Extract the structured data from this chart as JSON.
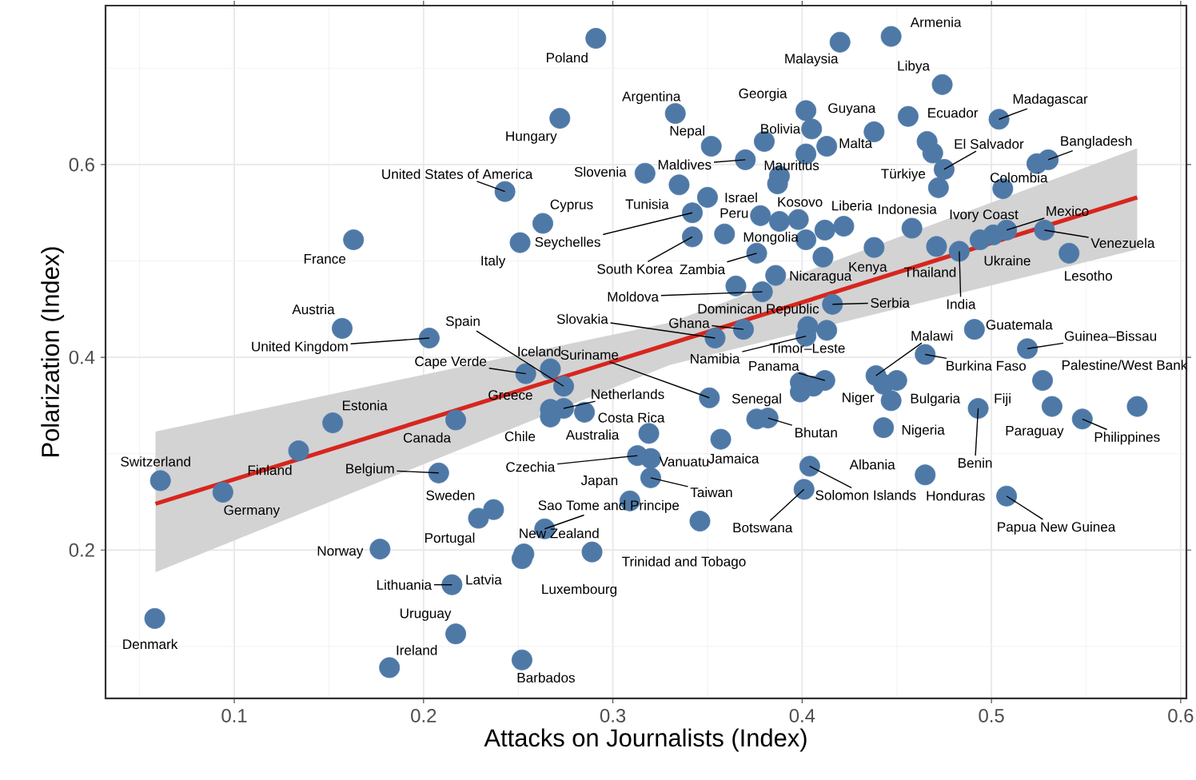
{
  "chart_data": {
    "type": "scatter",
    "xlabel": "Attacks on Journalists (Index)",
    "ylabel": "Polarization (Index)",
    "xlim": [
      0.032,
      0.603
    ],
    "ylim": [
      0.046,
      0.765
    ],
    "xticks": [
      0.1,
      0.2,
      0.3,
      0.4,
      0.5,
      0.6
    ],
    "yticks": [
      0.2,
      0.4,
      0.6
    ],
    "grid": true,
    "series": [
      {
        "marker": "circle",
        "color": "#4e79a7",
        "x": [
          0.058,
          0.061,
          0.094,
          0.134,
          0.152,
          0.217,
          0.208,
          0.237,
          0.229,
          0.177,
          0.215,
          0.217,
          0.182,
          0.252,
          0.252,
          0.253,
          0.289,
          0.264,
          0.254,
          0.267,
          0.274,
          0.274,
          0.267,
          0.267,
          0.285,
          0.313,
          0.32,
          0.32,
          0.309,
          0.319,
          0.346,
          0.401,
          0.404,
          0.443,
          0.447,
          0.443,
          0.45,
          0.493,
          0.465,
          0.508,
          0.527,
          0.577,
          0.532,
          0.548,
          0.519,
          0.491,
          0.465,
          0.439,
          0.413,
          0.402,
          0.412,
          0.376,
          0.351,
          0.357,
          0.382,
          0.354,
          0.369,
          0.365,
          0.379,
          0.386,
          0.416,
          0.376,
          0.342,
          0.342,
          0.335,
          0.359,
          0.35,
          0.398,
          0.402,
          0.422,
          0.458,
          0.438,
          0.471,
          0.483,
          0.494,
          0.501,
          0.508,
          0.528,
          0.541,
          0.506,
          0.53,
          0.504,
          0.466,
          0.475,
          0.472,
          0.474,
          0.447,
          0.42,
          0.438,
          0.402,
          0.38,
          0.413,
          0.402,
          0.352,
          0.333,
          0.37,
          0.317,
          0.291,
          0.272,
          0.243,
          0.263,
          0.251,
          0.163,
          0.157,
          0.203,
          0.399,
          0.399,
          0.406,
          0.403,
          0.405,
          0.388,
          0.387,
          0.378,
          0.388,
          0.412,
          0.411,
          0.469,
          0.456,
          0.524
        ],
        "values": [
          0.129,
          0.272,
          0.26,
          0.303,
          0.332,
          0.335,
          0.28,
          0.242,
          0.233,
          0.201,
          0.164,
          0.113,
          0.078,
          0.086,
          0.191,
          0.196,
          0.198,
          0.222,
          0.383,
          0.388,
          0.37,
          0.347,
          0.346,
          0.338,
          0.343,
          0.298,
          0.295,
          0.275,
          0.251,
          0.321,
          0.23,
          0.263,
          0.287,
          0.327,
          0.355,
          0.372,
          0.376,
          0.347,
          0.278,
          0.256,
          0.376,
          0.349,
          0.349,
          0.336,
          0.409,
          0.429,
          0.403,
          0.381,
          0.428,
          0.422,
          0.376,
          0.336,
          0.358,
          0.315,
          0.337,
          0.42,
          0.429,
          0.474,
          0.468,
          0.485,
          0.455,
          0.508,
          0.525,
          0.55,
          0.579,
          0.528,
          0.566,
          0.543,
          0.522,
          0.536,
          0.534,
          0.514,
          0.515,
          0.51,
          0.522,
          0.527,
          0.532,
          0.532,
          0.508,
          0.575,
          0.605,
          0.647,
          0.624,
          0.595,
          0.576,
          0.683,
          0.733,
          0.727,
          0.634,
          0.656,
          0.624,
          0.619,
          0.611,
          0.619,
          0.653,
          0.605,
          0.591,
          0.731,
          0.648,
          0.572,
          0.539,
          0.519,
          0.522,
          0.43,
          0.42,
          0.364,
          0.374,
          0.37,
          0.432,
          0.637,
          0.588,
          0.58,
          0.547,
          0.541,
          0.532,
          0.504,
          0.612,
          0.65,
          0.601
        ]
      },
      {
        "type": "line",
        "color": "#d7261e",
        "x": [
          0.0584,
          0.33,
          0.577
        ],
        "values": [
          0.248,
          0.414,
          0.566
        ],
        "lower": [
          0.177,
          0.392,
          0.512
        ],
        "upper": [
          0.323,
          0.436,
          0.617
        ]
      }
    ],
    "annotations": [
      {
        "text": "Denmark",
        "x": 0.058,
        "y": 0.129
      },
      {
        "text": "Switzerland",
        "x": 0.061,
        "y": 0.272
      },
      {
        "text": "Germany",
        "x": 0.094,
        "y": 0.26
      },
      {
        "text": "Finland",
        "x": 0.134,
        "y": 0.303
      },
      {
        "text": "Estonia",
        "x": 0.152,
        "y": 0.332
      },
      {
        "text": "Canada",
        "x": 0.217,
        "y": 0.335
      },
      {
        "text": "Belgium",
        "x": 0.208,
        "y": 0.28
      },
      {
        "text": "Sweden",
        "x": 0.237,
        "y": 0.242
      },
      {
        "text": "Portugal",
        "x": 0.229,
        "y": 0.233
      },
      {
        "text": "Norway",
        "x": 0.177,
        "y": 0.201
      },
      {
        "text": "Lithuania",
        "x": 0.215,
        "y": 0.164
      },
      {
        "text": "Uruguay",
        "x": 0.217,
        "y": 0.113
      },
      {
        "text": "Ireland",
        "x": 0.182,
        "y": 0.078
      },
      {
        "text": "Barbados",
        "x": 0.252,
        "y": 0.086
      },
      {
        "text": "Latvia",
        "x": 0.252,
        "y": 0.191
      },
      {
        "text": "New Zealand",
        "x": 0.253,
        "y": 0.196
      },
      {
        "text": "Luxembourg",
        "x": 0.289,
        "y": 0.198
      },
      {
        "text": "Sao Tome and Principe",
        "x": 0.264,
        "y": 0.222
      },
      {
        "text": "Cape Verde",
        "x": 0.254,
        "y": 0.383
      },
      {
        "text": "Iceland",
        "x": 0.267,
        "y": 0.388
      },
      {
        "text": "Spain",
        "x": 0.274,
        "y": 0.37
      },
      {
        "text": "Netherlands",
        "x": 0.274,
        "y": 0.347
      },
      {
        "text": "Greece",
        "x": 0.267,
        "y": 0.346
      },
      {
        "text": "Chile",
        "x": 0.267,
        "y": 0.338
      },
      {
        "text": "Australia",
        "x": 0.285,
        "y": 0.343
      },
      {
        "text": "Czechia",
        "x": 0.313,
        "y": 0.298
      },
      {
        "text": "Vanuatu",
        "x": 0.32,
        "y": 0.295
      },
      {
        "text": "Taiwan",
        "x": 0.32,
        "y": 0.275
      },
      {
        "text": "Japan",
        "x": 0.309,
        "y": 0.251
      },
      {
        "text": "Costa Rica",
        "x": 0.319,
        "y": 0.321
      },
      {
        "text": "Trinidad and Tobago",
        "x": 0.346,
        "y": 0.23
      },
      {
        "text": "Botswana",
        "x": 0.401,
        "y": 0.263
      },
      {
        "text": "Solomon Islands",
        "x": 0.404,
        "y": 0.287
      },
      {
        "text": "Albania",
        "x": 0.443,
        "y": 0.327
      },
      {
        "text": "Nigeria",
        "x": 0.447,
        "y": 0.355
      },
      {
        "text": "Niger",
        "x": 0.443,
        "y": 0.372
      },
      {
        "text": "Bulgaria",
        "x": 0.45,
        "y": 0.376
      },
      {
        "text": "Benin",
        "x": 0.493,
        "y": 0.347
      },
      {
        "text": "Honduras",
        "x": 0.465,
        "y": 0.278
      },
      {
        "text": "Papua New Guinea",
        "x": 0.508,
        "y": 0.256
      },
      {
        "text": "Fiji",
        "x": 0.527,
        "y": 0.376
      },
      {
        "text": "Palestine/West Bank",
        "x": 0.577,
        "y": 0.349
      },
      {
        "text": "Paraguay",
        "x": 0.532,
        "y": 0.349
      },
      {
        "text": "Philippines",
        "x": 0.548,
        "y": 0.336
      },
      {
        "text": "Guinea–Bissau",
        "x": 0.519,
        "y": 0.409
      },
      {
        "text": "Guatemala",
        "x": 0.491,
        "y": 0.429
      },
      {
        "text": "Burkina Faso",
        "x": 0.465,
        "y": 0.403
      },
      {
        "text": "Malawi",
        "x": 0.439,
        "y": 0.381
      },
      {
        "text": "Timor–Leste",
        "x": 0.413,
        "y": 0.428
      },
      {
        "text": "Namibia",
        "x": 0.402,
        "y": 0.422
      },
      {
        "text": "Panama",
        "x": 0.412,
        "y": 0.376
      },
      {
        "text": "Senegal",
        "x": 0.376,
        "y": 0.336
      },
      {
        "text": "Suriname",
        "x": 0.351,
        "y": 0.358
      },
      {
        "text": "Jamaica",
        "x": 0.357,
        "y": 0.315
      },
      {
        "text": "Bhutan",
        "x": 0.382,
        "y": 0.337
      },
      {
        "text": "Slovakia",
        "x": 0.354,
        "y": 0.42
      },
      {
        "text": "Ghana",
        "x": 0.369,
        "y": 0.429
      },
      {
        "text": "Dominican Republic",
        "x": 0.365,
        "y": 0.474
      },
      {
        "text": "Moldova",
        "x": 0.379,
        "y": 0.468
      },
      {
        "text": "Nicaragua",
        "x": 0.386,
        "y": 0.485
      },
      {
        "text": "Serbia",
        "x": 0.416,
        "y": 0.455
      },
      {
        "text": "Zambia",
        "x": 0.376,
        "y": 0.508
      },
      {
        "text": "South Korea",
        "x": 0.342,
        "y": 0.525
      },
      {
        "text": "Seychelles",
        "x": 0.342,
        "y": 0.55
      },
      {
        "text": "Tunisia",
        "x": 0.335,
        "y": 0.579
      },
      {
        "text": "Peru",
        "x": 0.359,
        "y": 0.528
      },
      {
        "text": "Israel",
        "x": 0.35,
        "y": 0.566
      },
      {
        "text": "Kosovo",
        "x": 0.398,
        "y": 0.543
      },
      {
        "text": "Mongolia",
        "x": 0.402,
        "y": 0.522
      },
      {
        "text": "Liberia",
        "x": 0.422,
        "y": 0.536
      },
      {
        "text": "Indonesia",
        "x": 0.458,
        "y": 0.534
      },
      {
        "text": "Kenya",
        "x": 0.438,
        "y": 0.514
      },
      {
        "text": "Thailand",
        "x": 0.471,
        "y": 0.515
      },
      {
        "text": "India",
        "x": 0.483,
        "y": 0.51
      },
      {
        "text": "Ukraine",
        "x": 0.494,
        "y": 0.522
      },
      {
        "text": "Ivory Coast",
        "x": 0.501,
        "y": 0.527
      },
      {
        "text": "Mexico",
        "x": 0.508,
        "y": 0.532
      },
      {
        "text": "Venezuela",
        "x": 0.528,
        "y": 0.532
      },
      {
        "text": "Lesotho",
        "x": 0.541,
        "y": 0.508
      },
      {
        "text": "Colombia",
        "x": 0.506,
        "y": 0.575
      },
      {
        "text": "Bangladesh",
        "x": 0.53,
        "y": 0.605
      },
      {
        "text": "Madagascar",
        "x": 0.504,
        "y": 0.647
      },
      {
        "text": "Ecuador",
        "x": 0.466,
        "y": 0.624
      },
      {
        "text": "El Salvador",
        "x": 0.475,
        "y": 0.595
      },
      {
        "text": "Türkiye",
        "x": 0.472,
        "y": 0.576
      },
      {
        "text": "Libya",
        "x": 0.474,
        "y": 0.683
      },
      {
        "text": "Armenia",
        "x": 0.447,
        "y": 0.733
      },
      {
        "text": "Malaysia",
        "x": 0.42,
        "y": 0.727
      },
      {
        "text": "Guyana",
        "x": 0.438,
        "y": 0.634
      },
      {
        "text": "Georgia",
        "x": 0.402,
        "y": 0.656
      },
      {
        "text": "Bolivia",
        "x": 0.38,
        "y": 0.624
      },
      {
        "text": "Malta",
        "x": 0.413,
        "y": 0.619
      },
      {
        "text": "Mauritius",
        "x": 0.402,
        "y": 0.611
      },
      {
        "text": "Nepal",
        "x": 0.352,
        "y": 0.619
      },
      {
        "text": "Argentina",
        "x": 0.333,
        "y": 0.653
      },
      {
        "text": "Maldives",
        "x": 0.37,
        "y": 0.605
      },
      {
        "text": "Slovenia",
        "x": 0.317,
        "y": 0.591
      },
      {
        "text": "Poland",
        "x": 0.291,
        "y": 0.731
      },
      {
        "text": "Hungary",
        "x": 0.272,
        "y": 0.648
      },
      {
        "text": "United States of America",
        "x": 0.243,
        "y": 0.572
      },
      {
        "text": "Cyprus",
        "x": 0.263,
        "y": 0.539
      },
      {
        "text": "Italy",
        "x": 0.251,
        "y": 0.519
      },
      {
        "text": "France",
        "x": 0.163,
        "y": 0.522
      },
      {
        "text": "Austria",
        "x": 0.157,
        "y": 0.43
      },
      {
        "text": "United Kingdom",
        "x": 0.203,
        "y": 0.42
      }
    ]
  }
}
